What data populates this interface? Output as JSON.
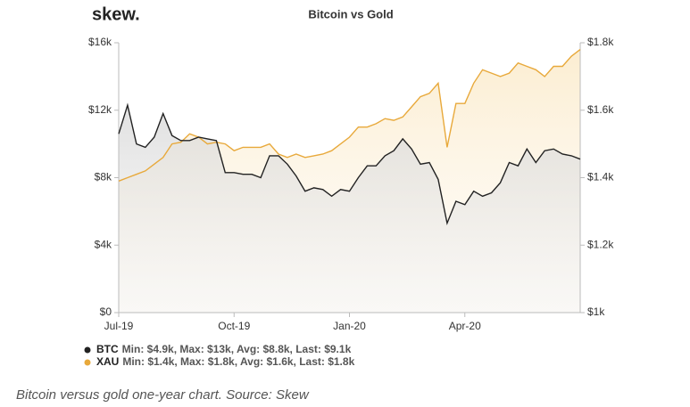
{
  "brand": "skew.",
  "caption": "Bitcoin versus gold one-year chart. Source: Skew",
  "chart_data": {
    "type": "line",
    "title": "Bitcoin vs Gold",
    "categories": [
      "Jul-19",
      null,
      null,
      null,
      null,
      null,
      null,
      null,
      null,
      null,
      null,
      null,
      null,
      "Oct-19",
      null,
      null,
      null,
      null,
      null,
      null,
      null,
      null,
      null,
      null,
      null,
      null,
      "Jan-20",
      null,
      null,
      null,
      null,
      null,
      null,
      null,
      null,
      null,
      null,
      null,
      null,
      "Apr-20",
      null,
      null,
      null,
      null,
      null,
      null,
      null,
      null,
      null,
      null,
      null,
      null,
      null
    ],
    "series": [
      {
        "name": "BTC",
        "stats": "Min: $4.9k, Max: $13k, Avg: $8.8k, Last: $9.1k",
        "color": "#222222",
        "axis": "y",
        "values": [
          10.6,
          12.3,
          10.0,
          9.8,
          10.4,
          11.8,
          10.5,
          10.2,
          10.2,
          10.4,
          10.3,
          10.2,
          8.3,
          8.3,
          8.2,
          8.2,
          8.0,
          9.3,
          9.3,
          8.8,
          8.1,
          7.2,
          7.4,
          7.3,
          6.9,
          7.3,
          7.2,
          8.0,
          8.7,
          8.7,
          9.3,
          9.6,
          10.3,
          9.7,
          8.8,
          8.9,
          7.9,
          5.3,
          6.6,
          6.4,
          7.2,
          6.9,
          7.1,
          7.7,
          8.9,
          8.7,
          9.7,
          8.9,
          9.6,
          9.7,
          9.4,
          9.3,
          9.1
        ]
      },
      {
        "name": "XAU",
        "stats": "Min: $1.4k, Max: $1.8k, Avg: $1.6k, Last: $1.8k",
        "color": "#e8a93b",
        "axis": "y2",
        "values": [
          1390,
          1400,
          1410,
          1420,
          1440,
          1460,
          1500,
          1505,
          1530,
          1520,
          1500,
          1505,
          1500,
          1480,
          1490,
          1490,
          1490,
          1500,
          1470,
          1460,
          1470,
          1460,
          1465,
          1470,
          1480,
          1500,
          1520,
          1550,
          1550,
          1560,
          1575,
          1570,
          1580,
          1610,
          1640,
          1650,
          1680,
          1490,
          1620,
          1620,
          1680,
          1720,
          1710,
          1700,
          1710,
          1740,
          1730,
          1720,
          1700,
          1730,
          1730,
          1760,
          1780
        ]
      }
    ],
    "ylim": [
      0,
      16
    ],
    "yticks": [
      {
        "value": 0,
        "label": "$0"
      },
      {
        "value": 4,
        "label": "$4k"
      },
      {
        "value": 8,
        "label": "$8k"
      },
      {
        "value": 12,
        "label": "$12k"
      },
      {
        "value": 16,
        "label": "$16k"
      }
    ],
    "y2lim": [
      1000,
      1800
    ],
    "y2ticks": [
      {
        "value": 1000,
        "label": "$1k"
      },
      {
        "value": 1200,
        "label": "$1.2k"
      },
      {
        "value": 1400,
        "label": "$1.4k"
      },
      {
        "value": 1600,
        "label": "$1.6k"
      },
      {
        "value": 1800,
        "label": "$1.8k"
      }
    ]
  }
}
